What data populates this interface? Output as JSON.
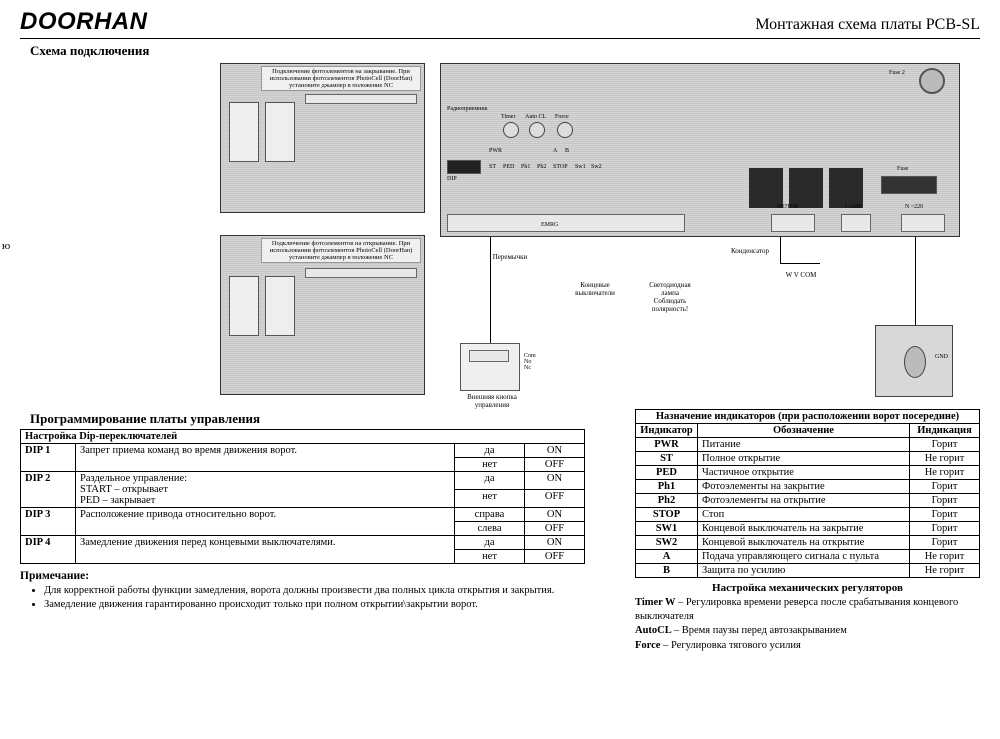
{
  "header": {
    "logo": "DOORHAN",
    "doc_title": "Монтажная схема платы PCB-SL"
  },
  "subtitle": "Схема подключения",
  "side_char": "ю",
  "diagram": {
    "caption_tl": "Подключение фотоэлементов на закрывание.\nПри использовании фотоэлементов PhotoCell (DoorHan)\nустановите джампер в положение NC",
    "caption_bl": "Подключение фотоэлементов на открывание.\nПри использовании фотоэлементов PhotoCell (DoorHan)\nустановите джампер в положение NC",
    "pcb_labels": {
      "radio": "Радиоприемник",
      "fuse2": "Fuse 2",
      "fuse": "Fuse",
      "dip": "DIP",
      "pwr": "PWR",
      "timer": "Timer",
      "autocl": "Auto CL",
      "force": "Force",
      "emrg": "EMRG",
      "motor": "MOTOR",
      "lamp": "LAMP",
      "n220": "N ~220",
      "st": "ST",
      "ped": "PED",
      "ph1": "Ph1",
      "ph2": "Ph2",
      "stop_l": "STOP",
      "sw1": "Sw1",
      "sw2": "Sw2",
      "a": "A",
      "b": "B"
    },
    "annotations": {
      "jumpers": "Перемычки",
      "limit_sw": "Концевые\nвыключатели",
      "led_lamp": "Светодиодная\nлампа\nСоблюдать\nполярность!",
      "capacitor": "Конденсатор",
      "wvcom": "W V COM",
      "ext_btn": "Внешняя кнопка\nуправления",
      "gnd": "GND",
      "btn_pins": "Com\nNo\nNc"
    }
  },
  "programming": {
    "section_title": "Программирование платы управления",
    "dip_header": "Настройка Dip-переключателей",
    "dip_rows": [
      {
        "id": "DIP 1",
        "desc": "Запрет приема команд во время движения ворот.",
        "opts": [
          [
            "да",
            "ON"
          ],
          [
            "нет",
            "OFF"
          ]
        ]
      },
      {
        "id": "DIP 2",
        "desc": "Раздельное управление:\nSTART – открывает\nPED – закрывает",
        "opts": [
          [
            "да",
            "ON"
          ],
          [
            "нет",
            "OFF"
          ]
        ]
      },
      {
        "id": "DIP 3",
        "desc": "Расположение привода относительно ворот.",
        "opts": [
          [
            "справа",
            "ON"
          ],
          [
            "слева",
            "OFF"
          ]
        ]
      },
      {
        "id": "DIP 4",
        "desc": "Замедление движения перед концевыми выключателями.",
        "opts": [
          [
            "да",
            "ON"
          ],
          [
            "нет",
            "OFF"
          ]
        ]
      }
    ],
    "notes_title": "Примечание:",
    "notes": [
      "Для корректной работы функции замедления, ворота должны произвести два полных цикла открытия и закрытия.",
      "Замедление движения гарантированно происходит только при полном открытии\\закрытии ворот."
    ]
  },
  "indicators": {
    "header": "Назначение индикаторов (при расположении ворот посередине)",
    "cols": [
      "Индикатор",
      "Обозначение",
      "Индикация"
    ],
    "rows": [
      [
        "PWR",
        "Питание",
        "Горит"
      ],
      [
        "ST",
        "Полное открытие",
        "Не горит"
      ],
      [
        "PED",
        "Частичное открытие",
        "Не горит"
      ],
      [
        "Ph1",
        "Фотоэлементы на закрытие",
        "Горит"
      ],
      [
        "Ph2",
        "Фотоэлементы на открытие",
        "Горит"
      ],
      [
        "STOP",
        "Стоп",
        "Горит"
      ],
      [
        "SW1",
        "Концевой выключатель на закрытие",
        "Горит"
      ],
      [
        "SW2",
        "Концевой выключатель на открытие",
        "Горит"
      ],
      [
        "A",
        "Подача управляющего сигнала с пульта",
        "Не горит"
      ],
      [
        "B",
        "Защита по усилию",
        "Не горит"
      ]
    ]
  },
  "regulators": {
    "title": "Настройка механических регуляторов",
    "lines": [
      "Timer W – Регулировка времени реверса после срабатывания концевого выключателя",
      "AutoCL  – Время паузы перед автозакрыванием",
      "Force   – Регулировка тягового усилия"
    ]
  },
  "colors": {
    "bg": "#ffffff",
    "text": "#000000",
    "pcb_fill": "#d0d0d0",
    "border": "#000000"
  },
  "fonts": {
    "body_family": "Times New Roman",
    "logo_family": "Arial",
    "body_size_pt": 8,
    "title_size_pt": 12
  }
}
